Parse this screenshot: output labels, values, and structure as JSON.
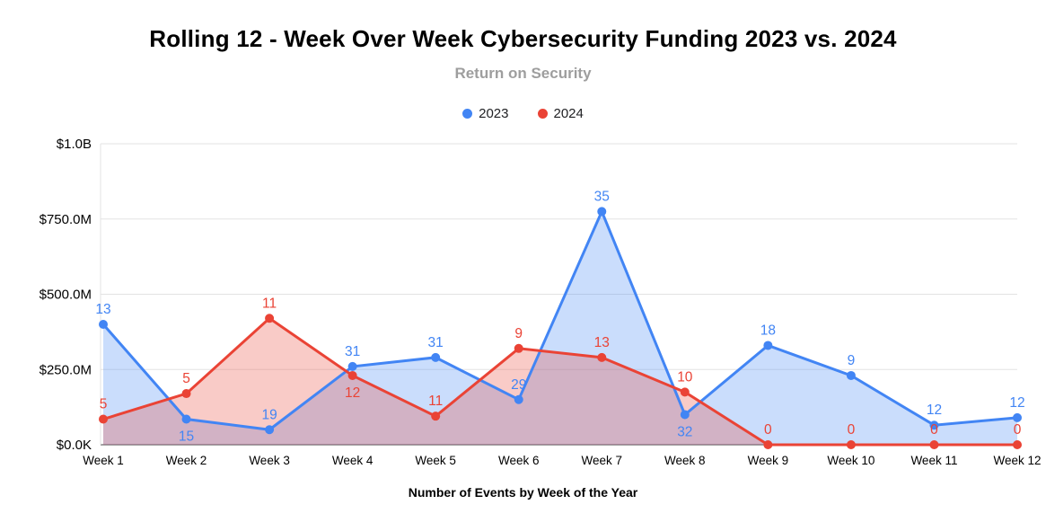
{
  "chart": {
    "title": "Rolling 12 - Week Over Week Cybersecurity Funding 2023 vs. 2024",
    "subtitle": "Return on Security",
    "xlabel": "Number of Events by Week of the Year"
  },
  "chart_data": {
    "type": "area",
    "categories": [
      "Week 1",
      "Week 2",
      "Week 3",
      "Week 4",
      "Week 5",
      "Week 6",
      "Week 7",
      "Week 8",
      "Week 9",
      "Week 10",
      "Week 11",
      "Week 12"
    ],
    "series": [
      {
        "name": "2023",
        "color": "#4285f4",
        "funding_musd": [
          400,
          85,
          50,
          260,
          290,
          150,
          775,
          100,
          330,
          230,
          65,
          90
        ],
        "event_count_labels": [
          13,
          15,
          19,
          31,
          31,
          29,
          35,
          32,
          18,
          9,
          12,
          12
        ]
      },
      {
        "name": "2024",
        "color": "#ea4335",
        "funding_musd": [
          85,
          170,
          420,
          230,
          95,
          320,
          290,
          175,
          0,
          0,
          0,
          0
        ],
        "event_count_labels": [
          5,
          5,
          11,
          12,
          11,
          9,
          13,
          10,
          0,
          0,
          0,
          0
        ]
      }
    ],
    "y_ticks": [
      {
        "value": 0,
        "label": "$0.0K"
      },
      {
        "value": 250,
        "label": "$250.0M"
      },
      {
        "value": 500,
        "label": "$500.0M"
      },
      {
        "value": 750,
        "label": "$750.0M"
      },
      {
        "value": 1000,
        "label": "$1.0B"
      }
    ],
    "ylim": [
      0,
      1000
    ],
    "y_unit": "millions USD",
    "grid": true,
    "legend_position": "top"
  }
}
